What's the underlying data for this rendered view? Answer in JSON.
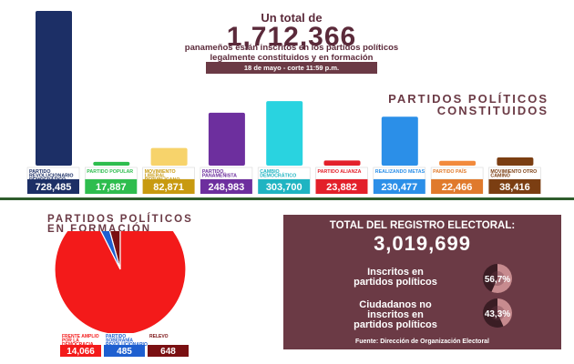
{
  "header": {
    "pre_title": "Un total de",
    "total": "1,712,366",
    "subtitle_line1": "panameños están inscritos en los partidos políticos",
    "subtitle_line2": "legalmente constituidos y en formación",
    "date_badge": "18 de mayo - corte 11:59 p.m."
  },
  "constituted_title_line1": "PARTIDOS POLÍTICOS",
  "constituted_title_line2": "CONSTITUIDOS",
  "formation_title_line1": "PARTIDOS POLÍTICOS",
  "formation_title_line2": "EN FORMACIÓN",
  "chart_data": [
    {
      "type": "bar",
      "title": "",
      "categories": [
        "PARTIDO REVOLUCIONARIO DEMOCRÁTICO",
        "PARTIDO POPULAR",
        "MOVIMIENTO LIBERAL REPUBLICANO NACIONALISTA",
        "PARTIDO PANAMEÑISTA",
        "CAMBIO DEMOCRÁTICO",
        "PARTIDO ALIANZA",
        "REALIZANDO METAS",
        "PARTIDO PAÍS",
        "MOVIMIENTO OTRO CAMINO"
      ],
      "values": [
        728485,
        17887,
        82871,
        248983,
        303700,
        23882,
        230477,
        22466,
        38416
      ],
      "value_labels": [
        "728,485",
        "17,887",
        "82,871",
        "248,983",
        "303,700",
        "23,882",
        "230,477",
        "22,466",
        "38,416"
      ],
      "colors": [
        "#1c2f66",
        "#2ebd4e",
        "#f7d36b",
        "#6d2f9e",
        "#29d3e0",
        "#e3202a",
        "#2b8fe8",
        "#f28a3c",
        "#7b3e12"
      ],
      "label_colors": [
        "#1c2f66",
        "#2ebd4e",
        "#c89a10",
        "#6d2f9e",
        "#1fb4c2",
        "#e3202a",
        "#2b8fe8",
        "#e07a2c",
        "#7b3e12"
      ],
      "ylim": [
        0,
        728485
      ]
    },
    {
      "type": "pie",
      "title": "",
      "categories": [
        "FRENTE AMPLIO POR LA DEMOCRACIA",
        "PARTIDO SOBERANÍA REVOLUCIONARIO",
        "RELEVO"
      ],
      "values": [
        14066,
        485,
        648
      ],
      "value_labels": [
        "14,066",
        "485",
        "648"
      ],
      "colors": [
        "#f31a1a",
        "#1e5fd0",
        "#7a1012"
      ],
      "label_colors": [
        "#f31a1a",
        "#1e5fd0",
        "#7a1012"
      ]
    }
  ],
  "registry": {
    "title": "TOTAL DEL REGISTRO ELECTORAL:",
    "total": "3,019,699",
    "rows": [
      {
        "label_line1": "Inscritos en",
        "label_line2": "partidos políticos",
        "label_line3": "",
        "percent_label": "56,7%",
        "fraction": 0.567
      },
      {
        "label_line1": "Ciudadanos no",
        "label_line2": "inscritos en",
        "label_line3": "partidos políticos",
        "percent_label": "43,3%",
        "fraction": 0.433
      }
    ],
    "source": "Fuente: Dirección de Organización Electoral"
  }
}
